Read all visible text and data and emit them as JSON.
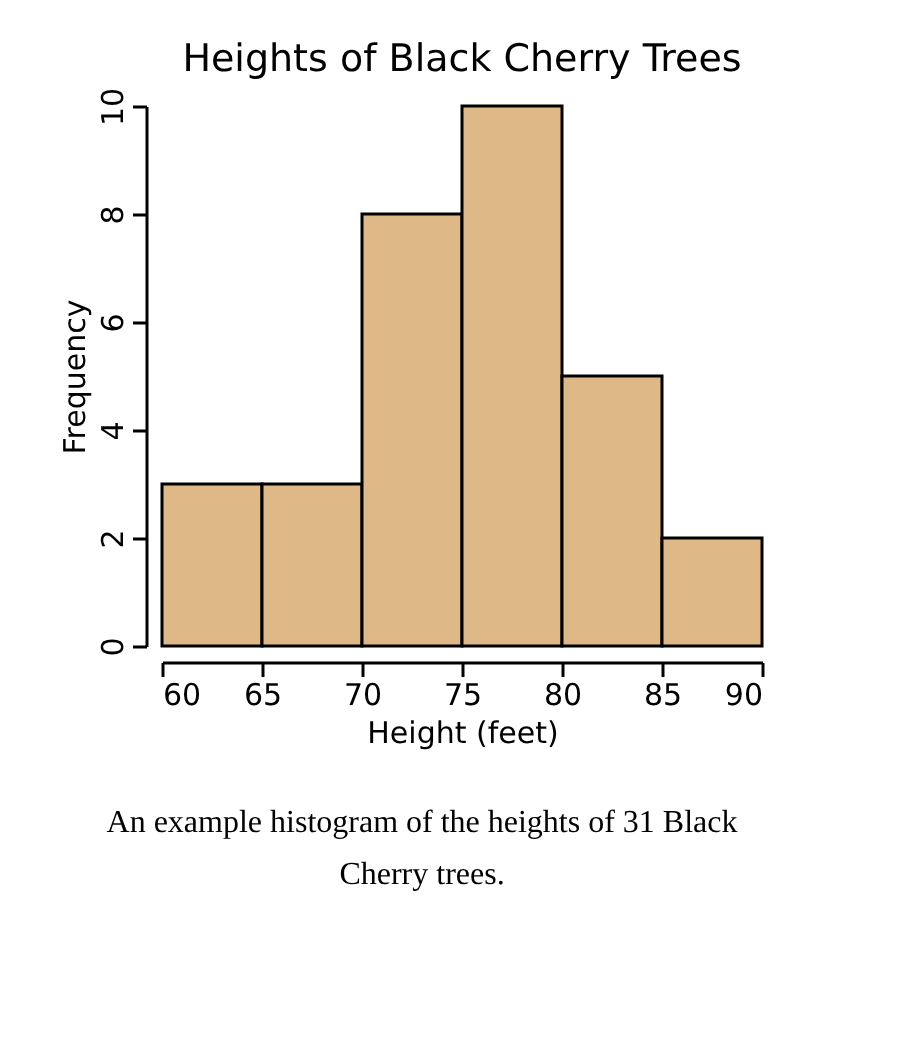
{
  "chart_data": {
    "type": "histogram",
    "title": "Heights of Black Cherry Trees",
    "xlabel": "Height (feet)",
    "ylabel": "Frequency",
    "bins": [
      60,
      65,
      70,
      75,
      80,
      85,
      90
    ],
    "values": [
      3,
      3,
      8,
      10,
      5,
      2
    ],
    "color": "#deb887",
    "xlim": [
      60,
      90
    ],
    "xticks": [
      60,
      65,
      70,
      75,
      80,
      85,
      90
    ],
    "ylim": [
      0,
      10
    ],
    "yticks": [
      0,
      2,
      4,
      6,
      8,
      10
    ],
    "grid": false,
    "annotations": [
      "An example histogram of the heights of 31 Black Cherry trees."
    ]
  }
}
